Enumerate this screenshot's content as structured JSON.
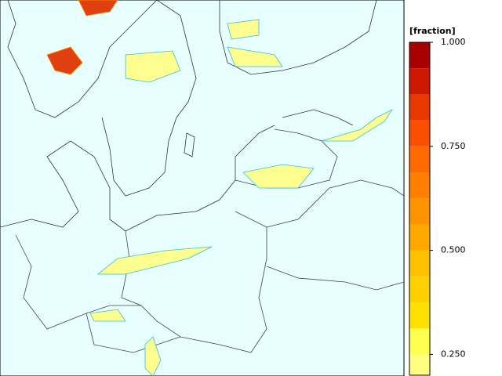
{
  "colorbar": {
    "label": "[fraction]",
    "lim": [
      0.2,
      1
    ],
    "bins": [
      0.2,
      0.25,
      0.3125,
      0.375,
      0.4375,
      0.5,
      0.5625,
      0.625,
      0.6875,
      0.75,
      0.8125,
      0.875,
      0.9375,
      1
    ],
    "colors": [
      "#ffff80",
      "#ffff50",
      "#ffe000",
      "#ffd000",
      "#ffc000",
      "#ffa800",
      "#ff9400",
      "#ff8000",
      "#ff6a00",
      "#f85000",
      "#e83800",
      "#cc1800",
      "#a80000"
    ],
    "ticks": [
      {
        "value": 1,
        "label": "1.000"
      },
      {
        "value": 0.75,
        "label": "0.750"
      },
      {
        "value": 0.5,
        "label": "0.500"
      },
      {
        "value": 0.25,
        "label": "0.250"
      }
    ]
  }
}
